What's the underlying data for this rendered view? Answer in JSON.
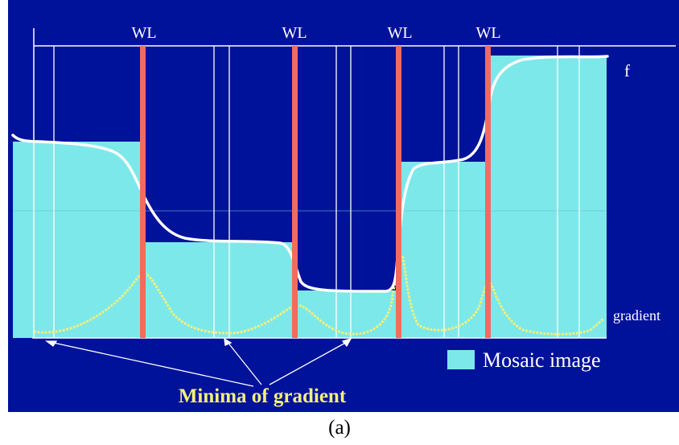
{
  "colors": {
    "background": "#00129a",
    "mosaic": "#7de8ea",
    "watershed_line": "#f26b5f",
    "function_curve": "#ffffff",
    "gradient_curve": "#f2f07a",
    "label": "#ffffff"
  },
  "labels": {
    "watershed_lines": [
      "WL",
      "WL",
      "WL",
      "WL"
    ],
    "function": "f",
    "gradient": "gradient",
    "legend": "Mosaic image",
    "minima": "Minima of gradient"
  },
  "caption": "(a)"
}
